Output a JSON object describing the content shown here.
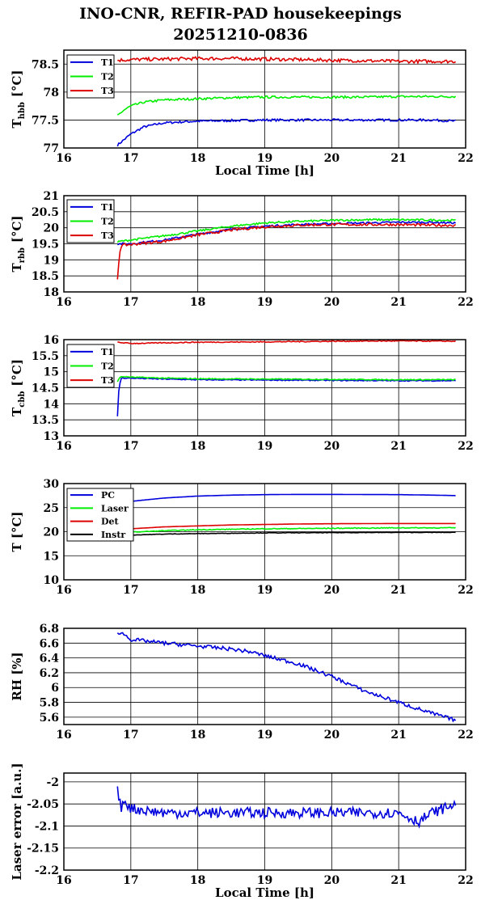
{
  "title": {
    "line1": "INO-CNR, REFIR-PAD housekeepings",
    "line2": "20251210-0836"
  },
  "colors": {
    "blue": "#0000dd",
    "green": "#00ee00",
    "red": "#dd0000",
    "black": "#000000"
  },
  "chart_data": [
    {
      "type": "line",
      "ylabel_main": "T",
      "ylabel_sub": "hbb",
      "ylabel_unit": "[°C]",
      "xlabel": "Local Time [h]",
      "xlim": [
        16,
        22
      ],
      "ylim": [
        77,
        78.75
      ],
      "xticks": [
        "16",
        "17",
        "18",
        "19",
        "20",
        "21",
        "22"
      ],
      "yticks": [
        "77",
        "77.5",
        "78",
        "78.5"
      ],
      "grid": true,
      "legend_position": "top-left",
      "series": [
        {
          "name": "T1",
          "color": "blue",
          "x": [
            16.8,
            16.9,
            17.0,
            17.2,
            17.5,
            18.0,
            18.5,
            19.0,
            19.5,
            20.0,
            20.5,
            21.0,
            21.5,
            21.85
          ],
          "y": [
            77.05,
            77.15,
            77.25,
            77.38,
            77.45,
            77.48,
            77.49,
            77.5,
            77.5,
            77.5,
            77.5,
            77.5,
            77.5,
            77.48
          ],
          "noise": 0.02
        },
        {
          "name": "T2",
          "color": "green",
          "x": [
            16.8,
            16.9,
            17.0,
            17.2,
            17.5,
            18.0,
            18.5,
            19.0,
            19.5,
            20.0,
            20.5,
            21.0,
            21.5,
            21.85
          ],
          "y": [
            77.58,
            77.68,
            77.75,
            77.82,
            77.86,
            77.88,
            77.9,
            77.91,
            77.91,
            77.91,
            77.91,
            77.92,
            77.92,
            77.92
          ],
          "noise": 0.02
        },
        {
          "name": "T3",
          "color": "red",
          "x": [
            16.8,
            17.0,
            17.5,
            18.0,
            18.5,
            19.0,
            19.5,
            20.0,
            20.5,
            21.0,
            21.5,
            21.85
          ],
          "y": [
            78.57,
            78.58,
            78.59,
            78.6,
            78.6,
            78.59,
            78.58,
            78.57,
            78.56,
            78.55,
            78.55,
            78.55
          ],
          "noise": 0.03
        }
      ]
    },
    {
      "type": "line",
      "ylabel_main": "T",
      "ylabel_sub": "rbb",
      "ylabel_unit": "[°C]",
      "xlabel": "",
      "xlim": [
        16,
        22
      ],
      "ylim": [
        18,
        21
      ],
      "xticks": [
        "16",
        "17",
        "18",
        "19",
        "20",
        "21",
        "22"
      ],
      "yticks": [
        "18",
        "18.5",
        "19",
        "19.5",
        "20",
        "20.5",
        "21"
      ],
      "grid": true,
      "legend_position": "top-left",
      "series": [
        {
          "name": "T1",
          "color": "blue",
          "x": [
            16.8,
            16.85,
            17.0,
            17.5,
            18.0,
            18.5,
            19.0,
            19.5,
            20.0,
            20.5,
            21.0,
            21.5,
            21.85
          ],
          "y": [
            19.5,
            19.5,
            19.5,
            19.62,
            19.8,
            19.95,
            20.05,
            20.1,
            20.13,
            20.15,
            20.17,
            20.17,
            20.15
          ],
          "noise": 0.03
        },
        {
          "name": "T2",
          "color": "green",
          "x": [
            16.8,
            16.85,
            17.0,
            17.5,
            18.0,
            18.5,
            19.0,
            19.5,
            20.0,
            20.5,
            21.0,
            21.5,
            21.85
          ],
          "y": [
            19.55,
            19.58,
            19.62,
            19.75,
            19.9,
            20.05,
            20.15,
            20.2,
            20.23,
            20.25,
            20.25,
            20.24,
            20.23
          ],
          "noise": 0.03
        },
        {
          "name": "T3",
          "color": "red",
          "x": [
            16.8,
            16.83,
            16.86,
            17.0,
            17.5,
            18.0,
            18.5,
            19.0,
            19.5,
            20.0,
            20.5,
            21.0,
            21.5,
            21.85
          ],
          "y": [
            18.4,
            19.2,
            19.45,
            19.48,
            19.58,
            19.78,
            19.93,
            20.03,
            20.08,
            20.1,
            20.1,
            20.1,
            20.08,
            20.08
          ],
          "noise": 0.04
        }
      ]
    },
    {
      "type": "line",
      "ylabel_main": "T",
      "ylabel_sub": "cbb",
      "ylabel_unit": "[°C]",
      "xlabel": "",
      "xlim": [
        16,
        22
      ],
      "ylim": [
        13,
        16
      ],
      "xticks": [
        "16",
        "17",
        "18",
        "19",
        "20",
        "21",
        "22"
      ],
      "yticks": [
        "13",
        "13.5",
        "14",
        "14.5",
        "15",
        "15.5",
        "16"
      ],
      "grid": true,
      "legend_position": "top-left",
      "series": [
        {
          "name": "T1",
          "color": "blue",
          "x": [
            16.8,
            16.82,
            16.85,
            17.0,
            17.5,
            18.0,
            19.0,
            20.0,
            21.0,
            21.85
          ],
          "y": [
            13.6,
            14.4,
            14.8,
            14.8,
            14.77,
            14.75,
            14.74,
            14.73,
            14.72,
            14.72
          ],
          "noise": 0.015
        },
        {
          "name": "T2",
          "color": "green",
          "x": [
            16.8,
            16.85,
            17.0,
            17.5,
            18.0,
            19.0,
            20.0,
            21.0,
            21.85
          ],
          "y": [
            14.7,
            14.85,
            14.83,
            14.8,
            14.78,
            14.77,
            14.76,
            14.75,
            14.75
          ],
          "noise": 0.015
        },
        {
          "name": "T3",
          "color": "red",
          "x": [
            16.8,
            17.0,
            17.5,
            18.0,
            19.0,
            20.0,
            21.0,
            21.85
          ],
          "y": [
            15.92,
            15.88,
            15.9,
            15.92,
            15.93,
            15.95,
            15.96,
            15.95
          ],
          "noise": 0.015
        }
      ]
    },
    {
      "type": "line",
      "ylabel_main": "T [°C]",
      "ylabel_sub": "",
      "ylabel_unit": "",
      "xlabel": "",
      "xlim": [
        16,
        22
      ],
      "ylim": [
        10,
        30
      ],
      "xticks": [
        "16",
        "17",
        "18",
        "19",
        "20",
        "21",
        "22"
      ],
      "yticks": [
        "10",
        "15",
        "20",
        "25",
        "30"
      ],
      "grid": true,
      "legend_position": "top-left",
      "series": [
        {
          "name": "PC",
          "color": "blue",
          "x": [
            16.8,
            17.0,
            17.5,
            18.0,
            18.5,
            19.0,
            19.5,
            20.0,
            20.5,
            21.0,
            21.5,
            21.85
          ],
          "y": [
            25.8,
            26.3,
            27.0,
            27.4,
            27.6,
            27.7,
            27.75,
            27.75,
            27.72,
            27.7,
            27.6,
            27.5
          ],
          "noise": 0.0
        },
        {
          "name": "Laser",
          "color": "green",
          "x": [
            16.8,
            17.0,
            17.5,
            18.0,
            19.0,
            20.0,
            21.0,
            21.85
          ],
          "y": [
            19.7,
            19.9,
            20.2,
            20.4,
            20.6,
            20.7,
            20.8,
            20.8
          ],
          "noise": 0.08
        },
        {
          "name": "Det",
          "color": "red",
          "x": [
            16.8,
            17.0,
            17.5,
            18.0,
            18.5,
            19.0,
            19.5,
            20.0,
            21.0,
            21.85
          ],
          "y": [
            20.3,
            20.6,
            21.0,
            21.2,
            21.4,
            21.5,
            21.6,
            21.65,
            21.7,
            21.7
          ],
          "noise": 0.0
        },
        {
          "name": "Instr",
          "color": "black",
          "x": [
            16.8,
            17.0,
            17.5,
            18.0,
            19.0,
            20.0,
            21.0,
            21.85
          ],
          "y": [
            19.1,
            19.3,
            19.5,
            19.6,
            19.75,
            19.8,
            19.85,
            19.85
          ],
          "noise": 0.05
        }
      ]
    },
    {
      "type": "line",
      "ylabel_main": "RH [%]",
      "ylabel_sub": "",
      "ylabel_unit": "",
      "xlabel": "",
      "xlim": [
        16,
        22
      ],
      "ylim": [
        5.5,
        6.8
      ],
      "xticks": [
        "16",
        "17",
        "18",
        "19",
        "20",
        "21",
        "22"
      ],
      "yticks": [
        "5.6",
        "5.8",
        "6",
        "6.2",
        "6.4",
        "6.6",
        "6.8"
      ],
      "grid": true,
      "legend_position": "none",
      "series": [
        {
          "name": "",
          "color": "blue",
          "x": [
            16.8,
            16.9,
            17.0,
            17.5,
            18.0,
            18.5,
            18.8,
            19.0,
            19.5,
            20.0,
            20.5,
            21.0,
            21.5,
            21.85
          ],
          "y": [
            6.75,
            6.72,
            6.65,
            6.6,
            6.56,
            6.52,
            6.48,
            6.43,
            6.32,
            6.15,
            5.95,
            5.8,
            5.65,
            5.56
          ],
          "noise": 0.025
        }
      ]
    },
    {
      "type": "line",
      "ylabel_main": "Laser error [a.u.]",
      "ylabel_sub": "",
      "ylabel_unit": "",
      "xlabel": "Local Time [h]",
      "xlim": [
        16,
        22
      ],
      "ylim": [
        -2.2,
        -1.98
      ],
      "xticks": [
        "16",
        "17",
        "18",
        "19",
        "20",
        "21",
        "22"
      ],
      "yticks": [
        "-2.2",
        "-2.15",
        "-2.1",
        "-2.05",
        "-2"
      ],
      "grid": true,
      "legend_position": "none",
      "series": [
        {
          "name": "",
          "color": "blue",
          "x": [
            16.8,
            16.85,
            16.9,
            17.0,
            17.5,
            18.0,
            18.5,
            19.0,
            19.5,
            20.0,
            20.5,
            21.0,
            21.3,
            21.5,
            21.85
          ],
          "y": [
            -2.02,
            -2.06,
            -2.04,
            -2.06,
            -2.07,
            -2.07,
            -2.07,
            -2.07,
            -2.07,
            -2.07,
            -2.07,
            -2.07,
            -2.09,
            -2.07,
            -2.05
          ],
          "noise": 0.012
        }
      ]
    }
  ]
}
